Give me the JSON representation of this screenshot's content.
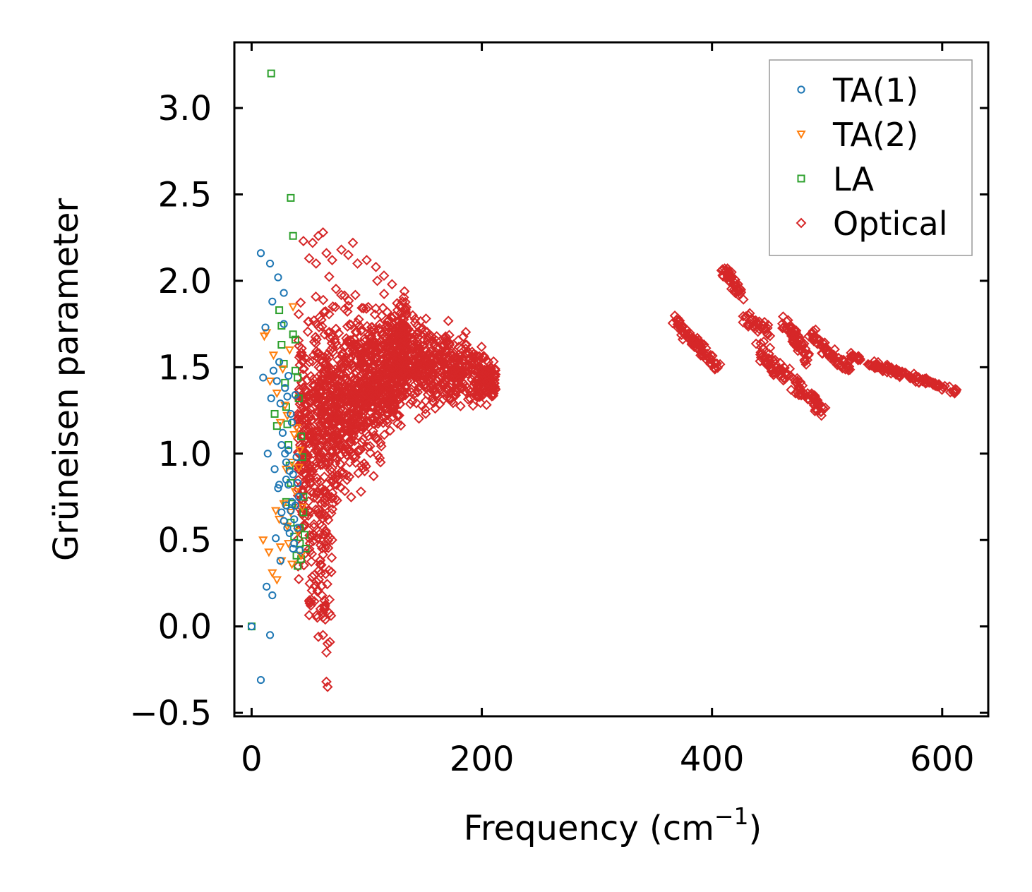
{
  "chart_data": {
    "type": "scatter",
    "xlabel": "Frequency (cm",
    "xlabel_sup": "−1",
    "xlabel_close": ")",
    "ylabel": "Grüneisen parameter",
    "xlim": [
      -15,
      640
    ],
    "ylim": [
      -0.52,
      3.38
    ],
    "xticks": [
      0,
      200,
      400,
      600
    ],
    "yticks": [
      -0.5,
      0.0,
      0.5,
      1.0,
      1.5,
      2.0,
      2.5,
      3.0
    ],
    "xtick_labels": [
      "0",
      "200",
      "400",
      "600"
    ],
    "ytick_labels": [
      "−0.5",
      "0.0",
      "0.5",
      "1.0",
      "1.5",
      "2.0",
      "2.5",
      "3.0"
    ],
    "legend": {
      "position": "top-right"
    },
    "series": [
      {
        "name": "TA(1)",
        "marker": "circle",
        "color": "#1f77b4",
        "points": [
          [
            0,
            0.0
          ],
          [
            8,
            2.16
          ],
          [
            8,
            -0.31
          ],
          [
            10,
            1.44
          ],
          [
            12,
            1.73
          ],
          [
            13,
            0.23
          ],
          [
            14,
            1.0
          ],
          [
            16,
            -0.05
          ],
          [
            16,
            2.1
          ],
          [
            17,
            1.32
          ],
          [
            18,
            1.88
          ],
          [
            18,
            0.18
          ],
          [
            19,
            1.48
          ],
          [
            20,
            0.91
          ],
          [
            21,
            0.51
          ],
          [
            22,
            1.42
          ],
          [
            23,
            2.02
          ],
          [
            23,
            0.8
          ],
          [
            24,
            1.53
          ],
          [
            25,
            1.29
          ],
          [
            25,
            0.38
          ],
          [
            26,
            1.05
          ],
          [
            27,
            1.12
          ],
          [
            28,
            1.93
          ],
          [
            28,
            0.61
          ],
          [
            29,
            1.38
          ],
          [
            30,
            0.7
          ],
          [
            30,
            0.95
          ],
          [
            31,
            1.33
          ],
          [
            32,
            1.02
          ],
          [
            32,
            0.82
          ],
          [
            33,
            0.54
          ],
          [
            34,
            0.67
          ],
          [
            34,
            1.23
          ],
          [
            35,
            0.72
          ],
          [
            36,
            0.88
          ],
          [
            36,
            0.45
          ],
          [
            37,
            0.62
          ],
          [
            38,
            0.7
          ],
          [
            39,
            0.98
          ],
          [
            40,
            0.57
          ],
          [
            41,
            0.75
          ],
          [
            42,
            0.44
          ],
          [
            28,
            1.75
          ],
          [
            32,
            1.45
          ],
          [
            35,
            1.18
          ],
          [
            38,
            1.34
          ],
          [
            26,
            0.66
          ],
          [
            30,
            0.85
          ],
          [
            33,
            0.9
          ],
          [
            31,
            0.57
          ],
          [
            40,
            0.83
          ],
          [
            37,
            0.48
          ],
          [
            29,
            1.0
          ],
          [
            24,
            0.82
          ]
        ]
      },
      {
        "name": "TA(2)",
        "marker": "triangle-down",
        "color": "#ff7f0e",
        "points": [
          [
            10,
            0.5
          ],
          [
            11,
            1.68
          ],
          [
            13,
            1.7
          ],
          [
            15,
            0.43
          ],
          [
            16,
            1.42
          ],
          [
            18,
            0.31
          ],
          [
            19,
            1.57
          ],
          [
            21,
            0.67
          ],
          [
            22,
            1.35
          ],
          [
            22,
            0.27
          ],
          [
            24,
            0.62
          ],
          [
            25,
            1.18
          ],
          [
            26,
            0.38
          ],
          [
            27,
            1.49
          ],
          [
            28,
            0.71
          ],
          [
            29,
            1.28
          ],
          [
            30,
            0.91
          ],
          [
            31,
            1.22
          ],
          [
            32,
            0.48
          ],
          [
            33,
            1.6
          ],
          [
            34,
            0.66
          ],
          [
            35,
            0.36
          ],
          [
            36,
            1.85
          ],
          [
            37,
            1.11
          ],
          [
            38,
            0.78
          ],
          [
            40,
            0.55
          ],
          [
            41,
            0.92
          ],
          [
            42,
            1.02
          ],
          [
            43,
            0.41
          ],
          [
            44,
            0.69
          ],
          [
            25,
            0.46
          ],
          [
            31,
            0.58
          ],
          [
            35,
            0.95
          ],
          [
            39,
            1.15
          ]
        ]
      },
      {
        "name": "LA",
        "marker": "square",
        "color": "#2ca02c",
        "points": [
          [
            0,
            0.0
          ],
          [
            17,
            3.2
          ],
          [
            20,
            1.23
          ],
          [
            22,
            1.16
          ],
          [
            24,
            1.83
          ],
          [
            26,
            1.74
          ],
          [
            26,
            1.63
          ],
          [
            28,
            1.52
          ],
          [
            29,
            1.41
          ],
          [
            30,
            1.27
          ],
          [
            31,
            1.17
          ],
          [
            32,
            1.05
          ],
          [
            33,
            0.93
          ],
          [
            34,
            0.83
          ],
          [
            35,
            0.71
          ],
          [
            34,
            2.48
          ],
          [
            36,
            2.26
          ],
          [
            36,
            1.69
          ],
          [
            38,
            1.66
          ],
          [
            38,
            1.48
          ],
          [
            40,
            1.44
          ],
          [
            40,
            0.35
          ],
          [
            41,
            1.32
          ],
          [
            42,
            0.57
          ],
          [
            42,
            0.48
          ],
          [
            43,
            1.1
          ],
          [
            43,
            0.39
          ],
          [
            44,
            0.98
          ],
          [
            45,
            0.75
          ],
          [
            45,
            0.66
          ],
          [
            46,
            0.53
          ],
          [
            47,
            0.45
          ],
          [
            30,
            0.72
          ],
          [
            34,
            0.6
          ],
          [
            37,
            0.52
          ],
          [
            39,
            0.41
          ]
        ]
      },
      {
        "name": "Optical",
        "marker": "diamond",
        "color": "#d62728",
        "points": []
      }
    ]
  }
}
